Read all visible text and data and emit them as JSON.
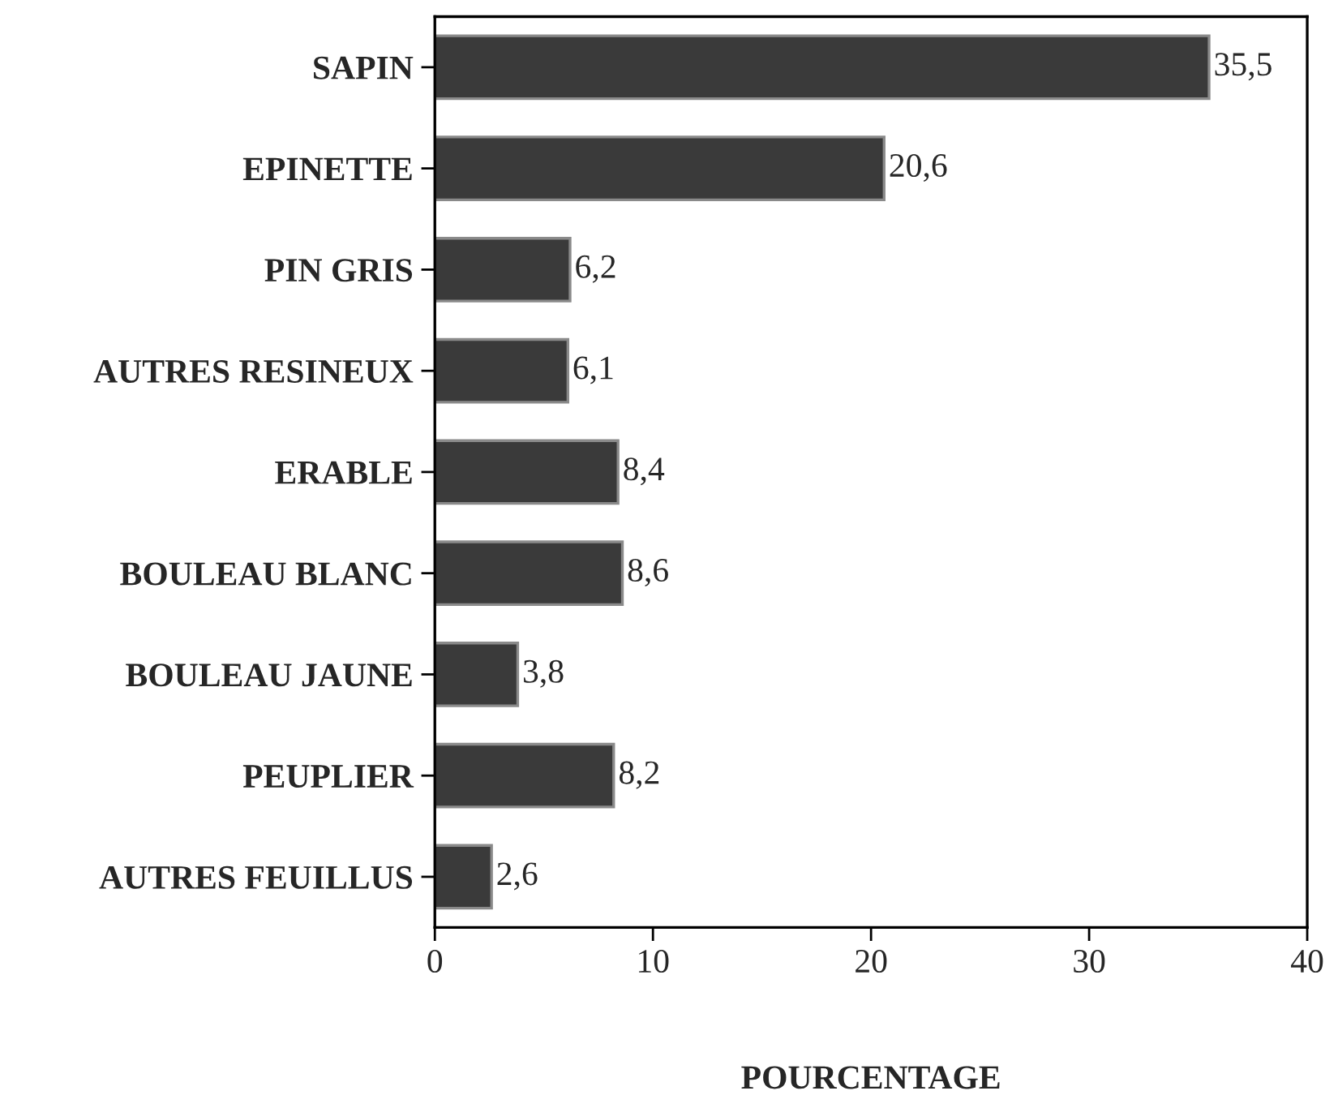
{
  "chart_data": {
    "type": "bar",
    "orientation": "horizontal",
    "xlabel": "POURCENTAGE",
    "categories": [
      "SAPIN",
      "EPINETTE",
      "PIN GRIS",
      "AUTRES RESINEUX",
      "ERABLE",
      "BOULEAU BLANC",
      "BOULEAU JAUNE",
      "PEUPLIER",
      "AUTRES FEUILLUS"
    ],
    "values": [
      35.5,
      20.6,
      6.2,
      6.1,
      8.4,
      8.6,
      3.8,
      8.2,
      2.6
    ],
    "value_labels": [
      "35,5",
      "20,6",
      "6,2",
      "6,1",
      "8,4",
      "8,6",
      "3,8",
      "8,2",
      "2,6"
    ],
    "color": "#3a3a3a",
    "xlim": [
      0,
      40
    ],
    "xticks": [
      0,
      10,
      20,
      30,
      40
    ],
    "grid": false,
    "legend": false
  }
}
